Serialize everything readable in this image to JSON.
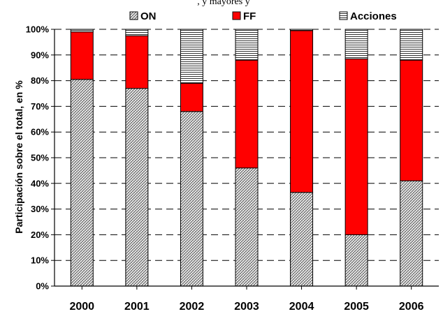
{
  "top_fragment": ", y mayores y",
  "chart_data": {
    "type": "bar",
    "stacked": true,
    "categories": [
      "2000",
      "2001",
      "2002",
      "2003",
      "2004",
      "2005",
      "2006"
    ],
    "series": [
      {
        "name": "ON",
        "values": [
          80.5,
          77,
          68,
          46,
          36.5,
          20,
          41
        ],
        "color": "#c8c8c8",
        "pattern": "diagonal-crosshatch"
      },
      {
        "name": "FF",
        "values": [
          18.5,
          20.5,
          11,
          42,
          63,
          68.5,
          47
        ],
        "color": "#ff0000",
        "pattern": "solid"
      },
      {
        "name": "Acciones",
        "values": [
          1,
          2.5,
          21,
          12,
          0.5,
          11.5,
          12
        ],
        "color": "#ffffff",
        "pattern": "horizontal-lines"
      }
    ],
    "ylabel": "Participación sobre el total, en %",
    "xlabel": "",
    "ylim": [
      0,
      100
    ],
    "yticks": [
      "0%",
      "10%",
      "20%",
      "30%",
      "40%",
      "50%",
      "60%",
      "70%",
      "80%",
      "90%",
      "100%"
    ],
    "grid": "horizontal dashed",
    "legend": "top"
  }
}
